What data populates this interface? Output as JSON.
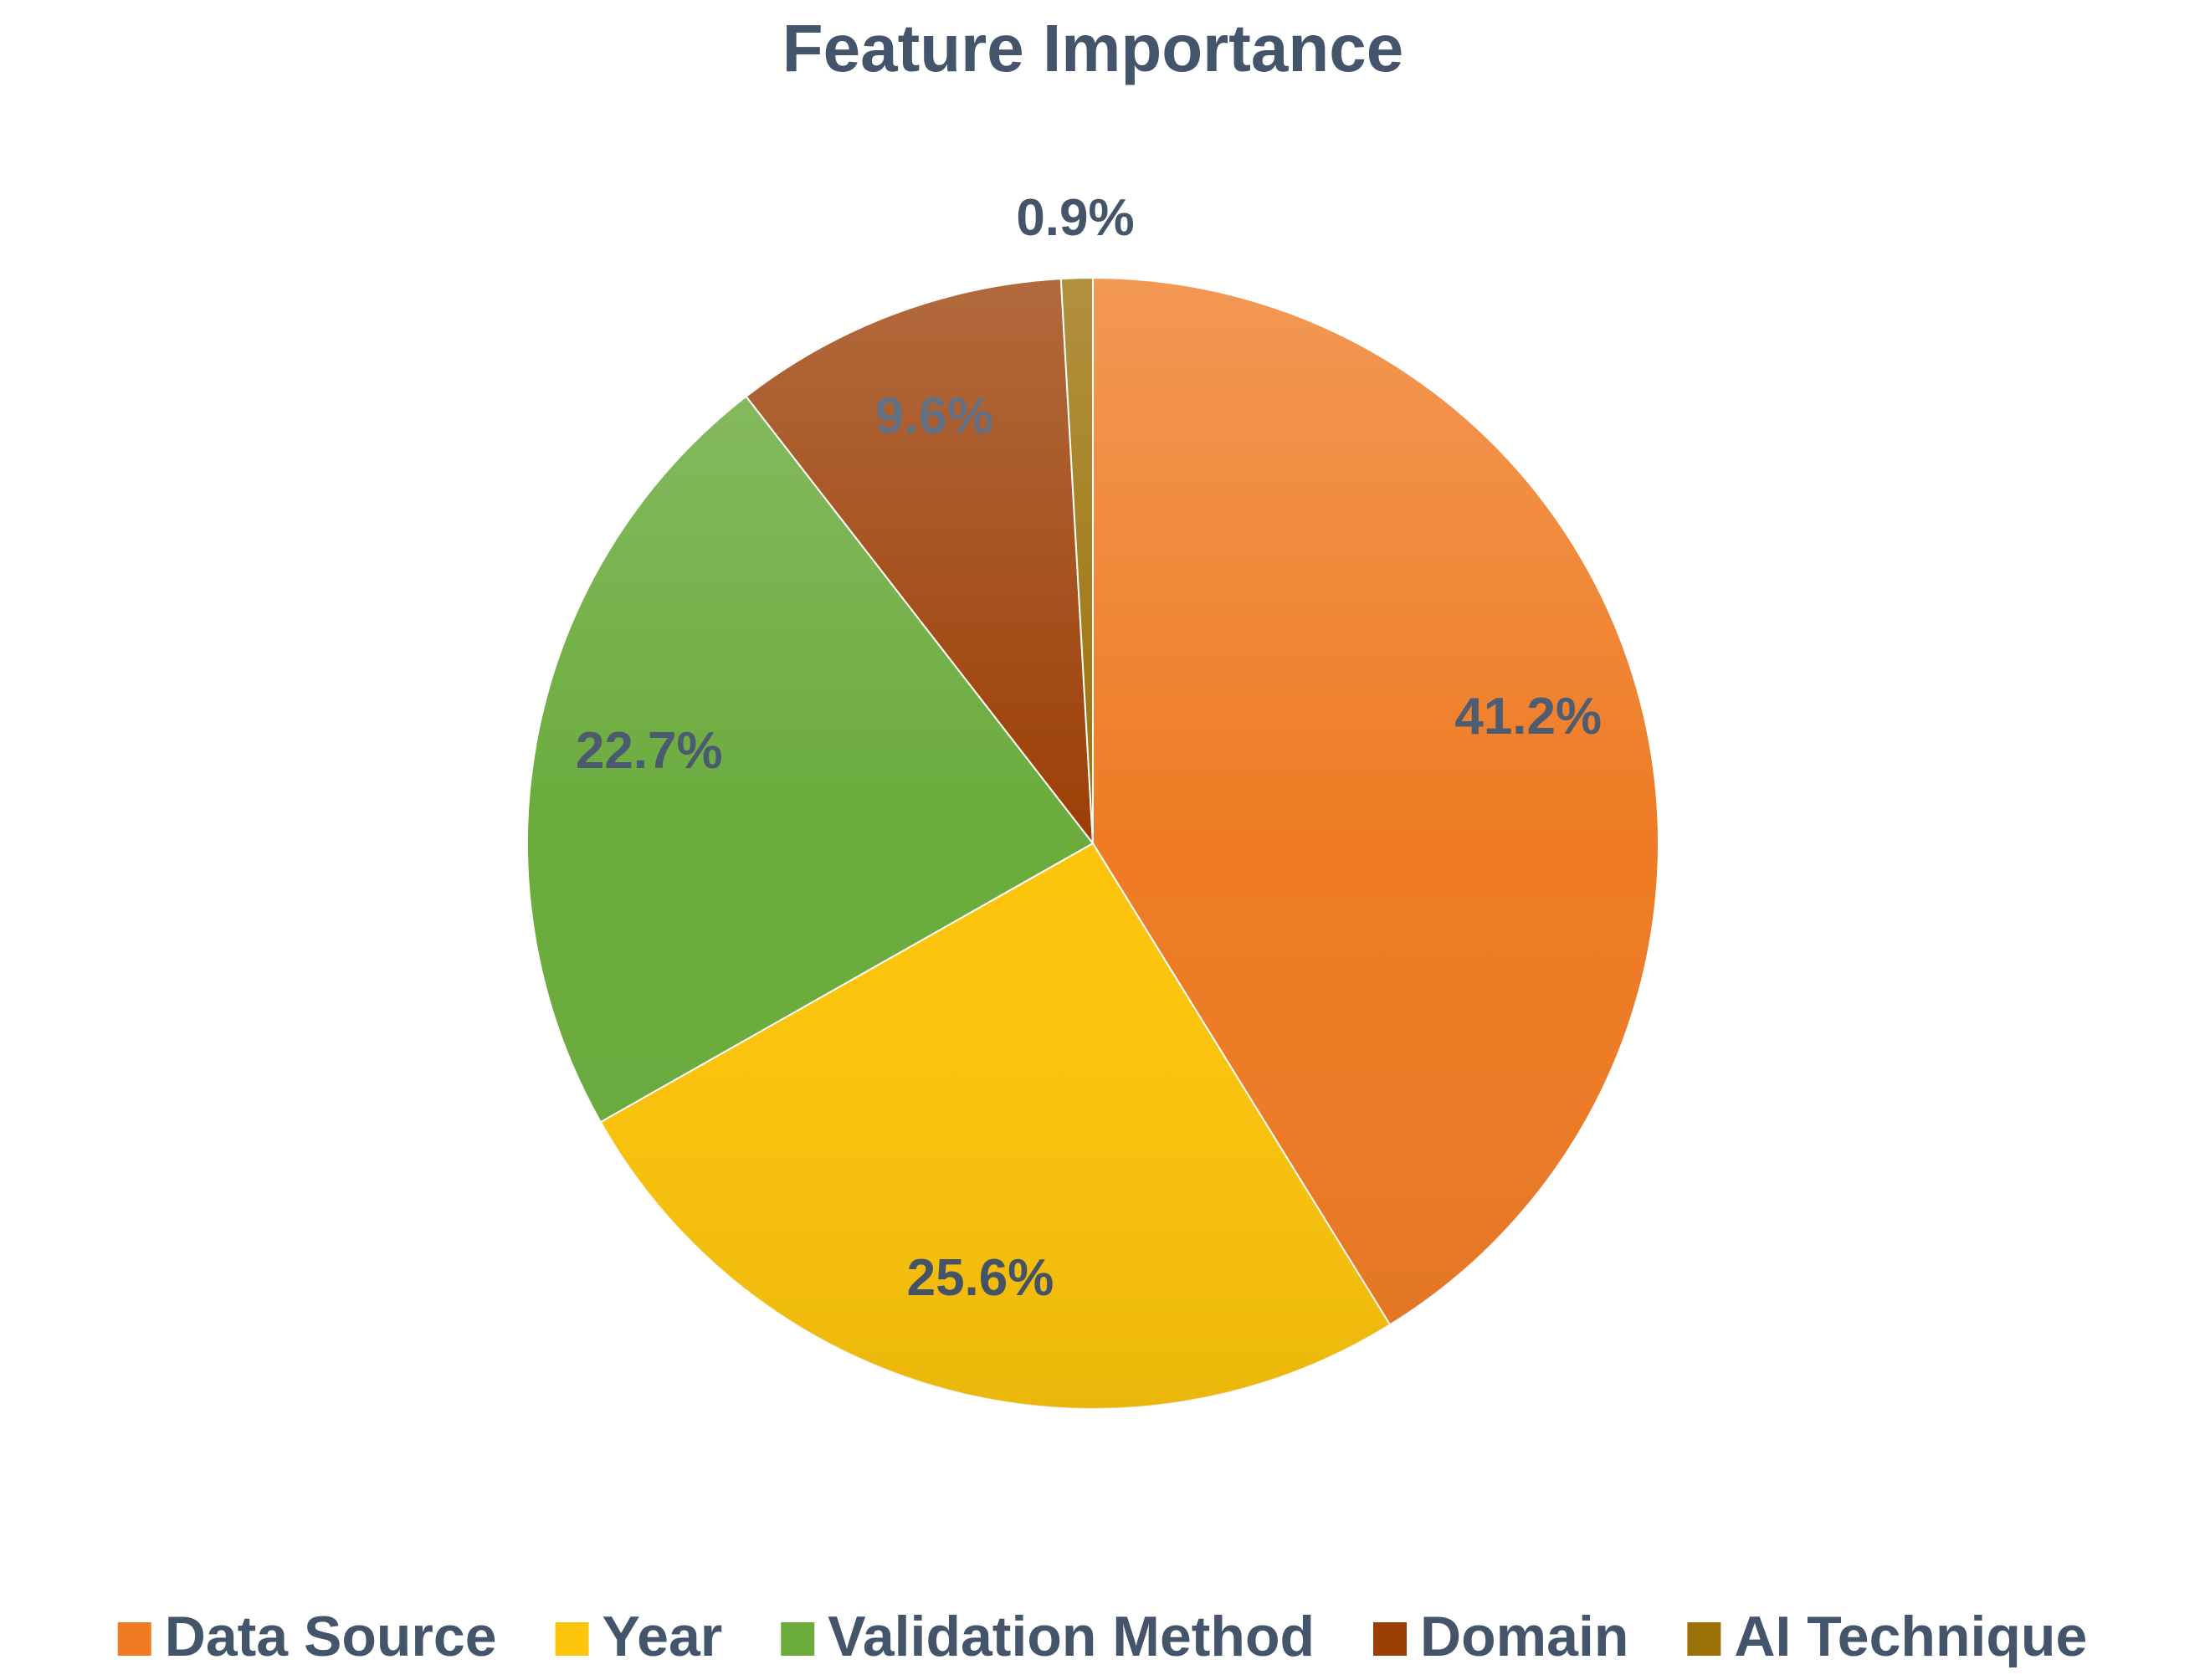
{
  "chart_data": {
    "type": "pie",
    "title": "Feature Importance",
    "categories": [
      "Data Source",
      "Year",
      "Validation Method",
      "Domain",
      "AI Technique"
    ],
    "values": [
      41.2,
      25.6,
      22.7,
      9.6,
      0.9
    ],
    "value_labels": [
      "41.2%",
      "25.6%",
      "22.7%",
      "9.6%",
      "0.9%"
    ],
    "colors": [
      "#ef7b24",
      "#fcc40a",
      "#6aab3c",
      "#9c3f06",
      "#9a7208"
    ],
    "legend": "bottom"
  }
}
